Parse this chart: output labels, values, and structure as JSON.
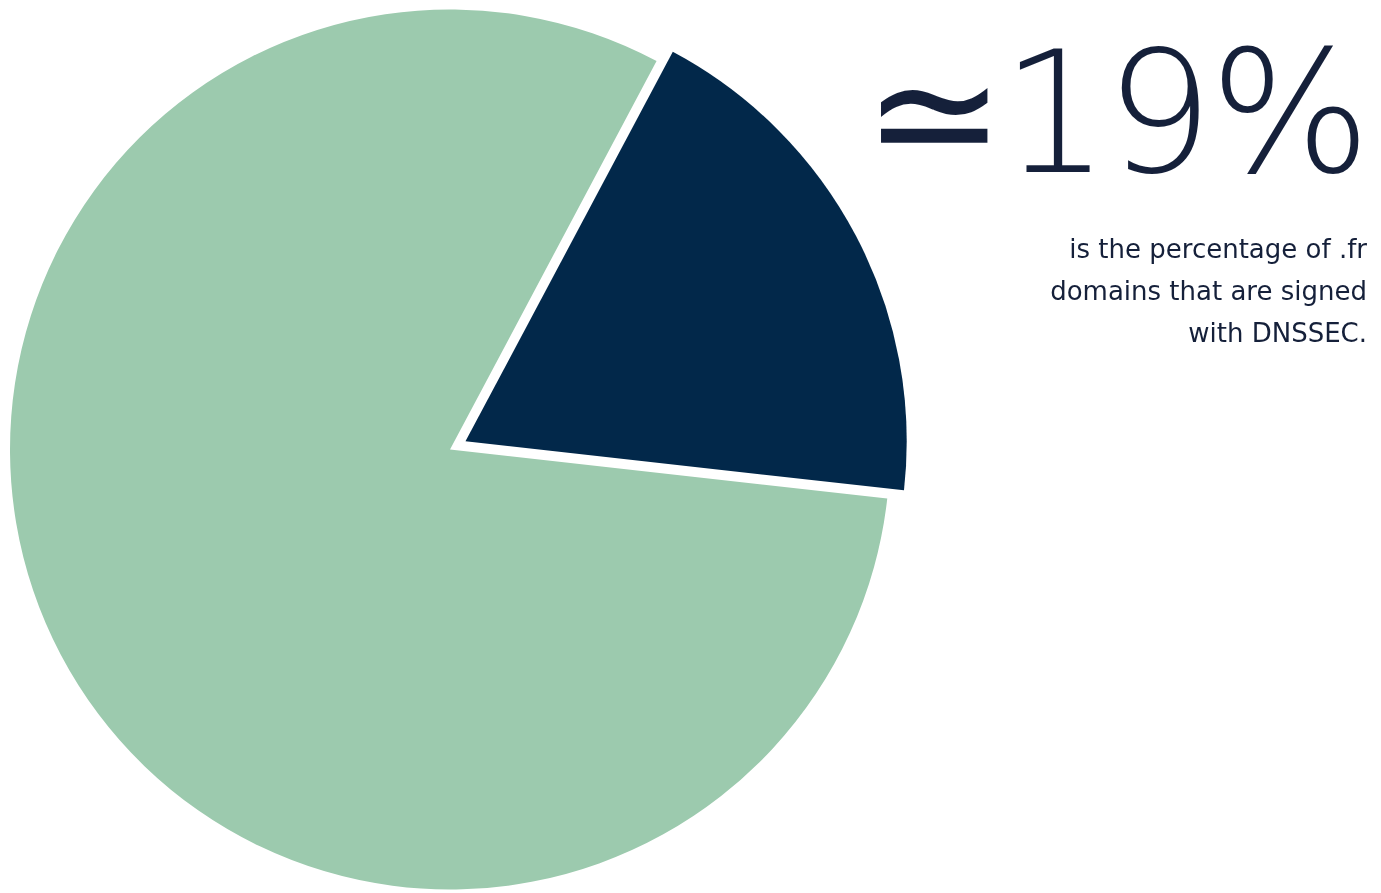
{
  "chart_data": {
    "type": "pie",
    "categories": [
      null,
      null
    ],
    "values": [
      19,
      81
    ],
    "colors": [
      "#02284a",
      "#9ccaae"
    ],
    "value_labels": [
      "≃19%",
      null
    ],
    "annotations": [
      "is the percentage of .fr domains that are signed with DNSSEC."
    ],
    "legend": false
  }
}
